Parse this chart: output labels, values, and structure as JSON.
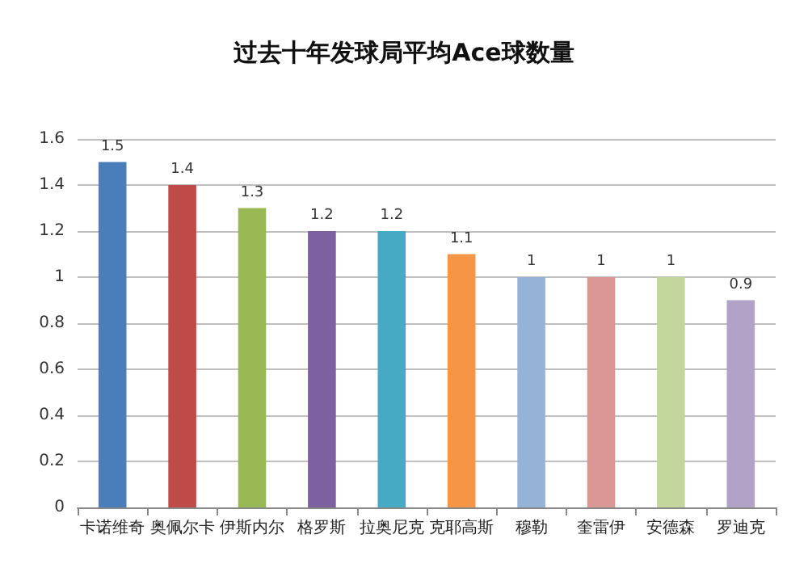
{
  "chart_data": {
    "type": "bar",
    "title": "过去十年发球局平均Ace球数量",
    "categories": [
      "卡诺维奇",
      "奥佩尔卡",
      "伊斯内尔",
      "格罗斯",
      "拉奥尼克",
      "克耶高斯",
      "穆勒",
      "奎雷伊",
      "安德森",
      "罗迪克"
    ],
    "values": [
      1.5,
      1.4,
      1.3,
      1.2,
      1.2,
      1.1,
      1,
      1,
      1,
      0.9
    ],
    "colors": [
      "#4a7ebb",
      "#be4b48",
      "#98b954",
      "#7d60a0",
      "#46aac5",
      "#f69546",
      "#94b3d6",
      "#d99694",
      "#c3d69b",
      "#b3a2c7"
    ],
    "ylim": [
      0,
      1.6
    ],
    "yticks": [
      0,
      0.2,
      0.4,
      0.6,
      0.8,
      1,
      1.2,
      1.4,
      1.6
    ],
    "grid": "y",
    "data_labels": true
  }
}
